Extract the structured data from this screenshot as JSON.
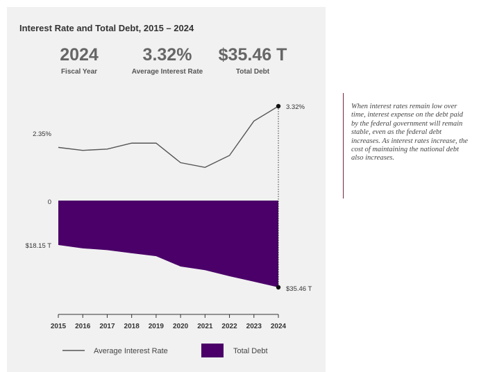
{
  "title": "Interest Rate and Total Debt, 2015 – 2024",
  "stats": [
    {
      "value": "2024",
      "label": "Fiscal Year"
    },
    {
      "value": "3.32%",
      "label": "Average Interest Rate"
    },
    {
      "value": "$35.46 T",
      "label": "Total Debt"
    }
  ],
  "note": "When interest rates remain low over time, interest expense on the debt paid by the federal government will remain stable, even as the federal debt increases. As interest rates increase, the cost of maintaining the national debt also increases.",
  "colors": {
    "rate_line": "#555555",
    "debt_fill": "#4a0068",
    "panel": "#f1f1f1"
  },
  "chart_data": {
    "type": "line+area",
    "title": "Interest Rate and Total Debt, 2015 – 2024",
    "x": [
      2015,
      2016,
      2017,
      2018,
      2019,
      2020,
      2021,
      2022,
      2023,
      2024
    ],
    "series": [
      {
        "name": "Average Interest Rate",
        "type": "line",
        "unit": "%",
        "values": [
          2.35,
          2.28,
          2.31,
          2.45,
          2.45,
          1.99,
          1.88,
          2.16,
          2.97,
          3.32
        ]
      },
      {
        "name": "Total Debt",
        "type": "area",
        "unit": "$T",
        "values": [
          18.15,
          19.54,
          20.24,
          21.52,
          22.72,
          26.95,
          28.43,
          30.93,
          33.17,
          35.46
        ]
      }
    ],
    "rate_range": [
      1.0,
      3.32
    ],
    "debt_range": [
      0,
      35.46
    ],
    "labels": {
      "rate_start": "2.35%",
      "rate_end": "3.32%",
      "debt_zero": "0",
      "debt_start": "$18.15 T",
      "debt_end": "$35.46 T"
    },
    "tick_labels": [
      "2015",
      "2016",
      "2017",
      "2018",
      "2019",
      "2020",
      "2021",
      "2022",
      "2023",
      "2024"
    ],
    "legend": [
      "Average Interest Rate",
      "Total Debt"
    ]
  }
}
